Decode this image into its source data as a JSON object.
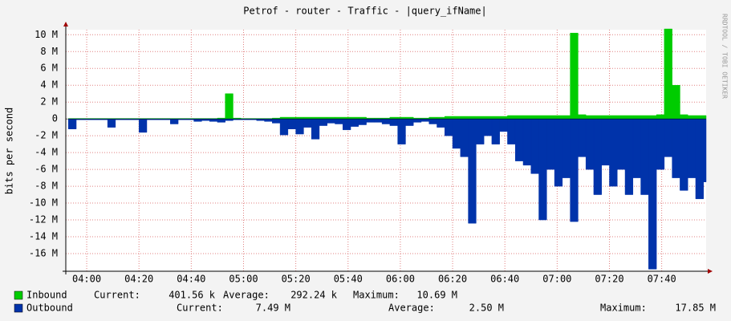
{
  "chart_data": {
    "type": "area",
    "title": "Petrof - router - Traffic - |query_ifName|",
    "y_label": "bits per second",
    "side_label": "RRDTOOL / TOBI OETIKER",
    "x": [
      233,
      236,
      239,
      242,
      245,
      248,
      251,
      254,
      257,
      260,
      263,
      266,
      269,
      272,
      275,
      278,
      281,
      284,
      287,
      290,
      293,
      296,
      299,
      302,
      305,
      308,
      311,
      314,
      317,
      320,
      323,
      326,
      329,
      332,
      335,
      338,
      341,
      344,
      347,
      350,
      353,
      356,
      359,
      362,
      365,
      368,
      371,
      374,
      377,
      380,
      383,
      386,
      389,
      392,
      395,
      398,
      401,
      404,
      407,
      410,
      413,
      416,
      419,
      422,
      425,
      428,
      431,
      434,
      437,
      440,
      443,
      446,
      449,
      452,
      455,
      458,
      461,
      464,
      467,
      470,
      473,
      476
    ],
    "series": [
      {
        "name": "Inbound",
        "color": "#00cc00",
        "values": [
          50000,
          50000,
          50000,
          50000,
          50000,
          50000,
          50000,
          50000,
          50000,
          50000,
          50000,
          50000,
          50000,
          50000,
          50000,
          50000,
          50000,
          50000,
          50000,
          100000,
          3000000,
          100000,
          50000,
          50000,
          50000,
          50000,
          100000,
          200000,
          200000,
          200000,
          200000,
          200000,
          200000,
          200000,
          200000,
          200000,
          200000,
          200000,
          100000,
          100000,
          100000,
          200000,
          200000,
          200000,
          100000,
          100000,
          200000,
          200000,
          300000,
          300000,
          300000,
          300000,
          300000,
          300000,
          300000,
          300000,
          400000,
          400000,
          400000,
          400000,
          400000,
          400000,
          400000,
          400000,
          10200000,
          500000,
          400000,
          400000,
          400000,
          400000,
          400000,
          400000,
          400000,
          400000,
          400000,
          500000,
          10690000,
          4000000,
          500000,
          400000,
          400000,
          401560
        ],
        "legend": [
          {
            "label": "Current:",
            "value": "401.56 k"
          },
          {
            "label": "Average:",
            "value": "292.24 k"
          },
          {
            "label": "Maximum:",
            "value": "10.69 M"
          }
        ]
      },
      {
        "name": "Outbound",
        "color": "#0033aa",
        "values": [
          -1200000,
          -100000,
          -100000,
          -100000,
          -100000,
          -1000000,
          -100000,
          -100000,
          -100000,
          -1600000,
          -100000,
          -100000,
          -100000,
          -600000,
          -100000,
          -100000,
          -300000,
          -200000,
          -300000,
          -400000,
          -200000,
          -100000,
          -100000,
          -100000,
          -200000,
          -300000,
          -500000,
          -1900000,
          -1200000,
          -1800000,
          -1000000,
          -2400000,
          -800000,
          -500000,
          -600000,
          -1300000,
          -900000,
          -700000,
          -400000,
          -400000,
          -600000,
          -800000,
          -3000000,
          -800000,
          -400000,
          -300000,
          -600000,
          -1000000,
          -2000000,
          -3500000,
          -4500000,
          -12400000,
          -3000000,
          -2000000,
          -3000000,
          -1500000,
          -3000000,
          -5000000,
          -5500000,
          -6500000,
          -12000000,
          -6000000,
          -8000000,
          -7000000,
          -12200000,
          -4500000,
          -6000000,
          -9000000,
          -5500000,
          -8000000,
          -6000000,
          -9000000,
          -7000000,
          -9000000,
          -17850000,
          -6000000,
          -4500000,
          -7000000,
          -8500000,
          -7000000,
          -9500000,
          -7490000
        ],
        "legend": [
          {
            "label": "Current:",
            "value": "7.49 M"
          },
          {
            "label": "Average:",
            "value": "2.50 M"
          },
          {
            "label": "Maximum:",
            "value": "17.85 M"
          }
        ]
      }
    ],
    "xlim": [
      232,
      477
    ],
    "xticks": [
      {
        "value": 240,
        "label": "04:00"
      },
      {
        "value": 260,
        "label": "04:20"
      },
      {
        "value": 280,
        "label": "04:40"
      },
      {
        "value": 300,
        "label": "05:00"
      },
      {
        "value": 320,
        "label": "05:20"
      },
      {
        "value": 340,
        "label": "05:40"
      },
      {
        "value": 360,
        "label": "06:00"
      },
      {
        "value": 380,
        "label": "06:20"
      },
      {
        "value": 400,
        "label": "06:40"
      },
      {
        "value": 420,
        "label": "07:00"
      },
      {
        "value": 440,
        "label": "07:20"
      },
      {
        "value": 460,
        "label": "07:40"
      }
    ],
    "ylim": [
      -18100000,
      10600000
    ],
    "yticks": [
      {
        "value": 10000000,
        "label": "10 M"
      },
      {
        "value": 8000000,
        "label": "8 M"
      },
      {
        "value": 6000000,
        "label": "6 M"
      },
      {
        "value": 4000000,
        "label": "4 M"
      },
      {
        "value": 2000000,
        "label": "2 M"
      },
      0,
      {
        "value": -2000000,
        "label": "-2 M"
      },
      {
        "value": -4000000,
        "label": "-4 M"
      },
      {
        "value": -6000000,
        "label": "-6 M"
      },
      {
        "value": -8000000,
        "label": "-8 M"
      },
      {
        "value": -10000000,
        "label": "-10 M"
      },
      {
        "value": -12000000,
        "label": "-12 M"
      },
      {
        "value": -14000000,
        "label": "-14 M"
      },
      {
        "value": -16000000,
        "label": "-16 M"
      }
    ],
    "grid": true
  }
}
